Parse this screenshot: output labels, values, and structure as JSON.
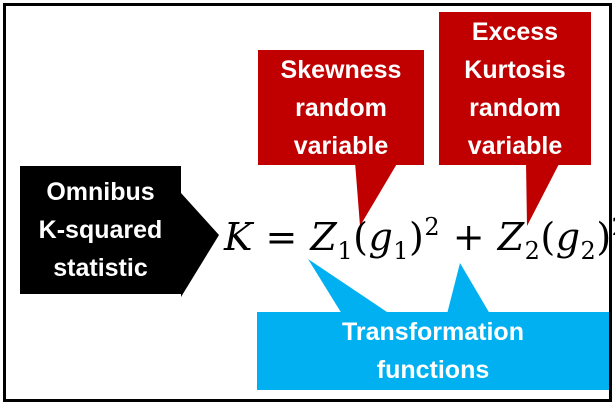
{
  "callouts": {
    "omnibus": {
      "line1": "Omnibus",
      "line2": "K-squared",
      "line3": "statistic"
    },
    "skewness": {
      "line1": "Skewness",
      "line2": "random",
      "line3": "variable"
    },
    "kurtosis": {
      "line1": "Excess",
      "line2": "Kurtosis",
      "line3": "random",
      "line4": "variable"
    },
    "transform": {
      "line1": "Transformation",
      "line2": "functions"
    }
  },
  "equation": {
    "lhs": "K",
    "equals": "=",
    "z": "Z",
    "sub1": "1",
    "sub2": "2",
    "g": "g",
    "open": "(",
    "close": ")",
    "power": "2",
    "plus": "+"
  },
  "colors": {
    "red": "#c00000",
    "black": "#000000",
    "blue": "#00b0f0"
  }
}
